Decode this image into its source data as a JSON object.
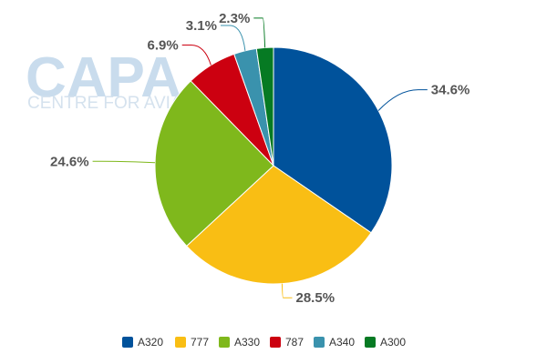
{
  "watermark": {
    "logo": "CAPA",
    "subtitle": "CENTRE FOR AVIATION"
  },
  "chart_data": {
    "type": "pie",
    "title": "",
    "categories": [
      "A320",
      "777",
      "A330",
      "787",
      "A340",
      "A300"
    ],
    "values": [
      34.6,
      28.5,
      24.6,
      6.9,
      3.1,
      2.3
    ],
    "labels": [
      "34.6%",
      "28.5%",
      "24.6%",
      "6.9%",
      "3.1%",
      "2.3%"
    ],
    "colors": [
      "#00529b",
      "#f9be14",
      "#7fb81c",
      "#cc0010",
      "#3a92ad",
      "#067a23"
    ],
    "legend_position": "bottom"
  }
}
